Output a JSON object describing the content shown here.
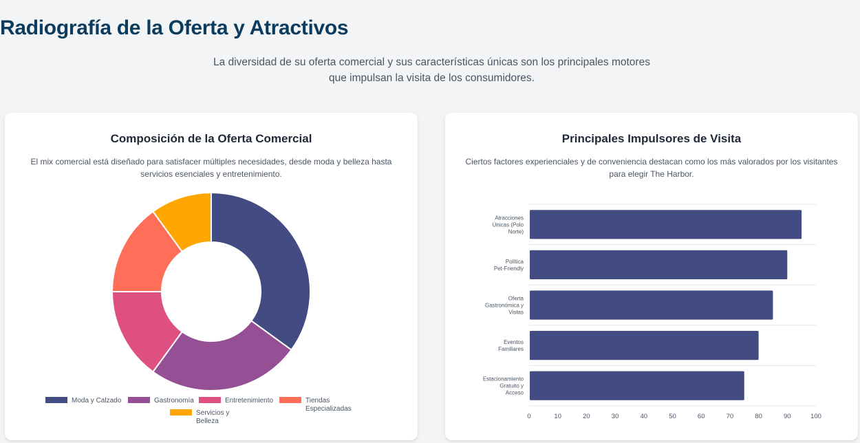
{
  "header": {
    "title": "Radiografía de la Oferta y Atractivos",
    "subtitle": "La diversidad de su oferta comercial y sus características únicas son los principales motores que impulsan la visita de los consumidores."
  },
  "left_card": {
    "title": "Composición de la Oferta Comercial",
    "description": "El mix comercial está diseñado para satisfacer múltiples necesidades, desde moda y belleza hasta servicios esenciales y entretenimiento."
  },
  "right_card": {
    "title": "Principales Impulsores de Visita",
    "description": "Ciertos factores experienciales y de conveniencia destacan como los más valorados por los visitantes para elegir The Harbor."
  },
  "chart_data": [
    {
      "type": "pie",
      "variant": "doughnut",
      "labels": [
        "Moda y Calzado",
        "Gastronomía",
        "Entretenimiento",
        "Tiendas Especializadas",
        "Servicios y Belleza"
      ],
      "values": [
        35,
        25,
        15,
        15,
        10
      ],
      "colors": [
        "#424b82",
        "#954f95",
        "#de5082",
        "#fe6e58",
        "#ffa600"
      ],
      "legend": "bottom"
    },
    {
      "type": "bar",
      "orientation": "horizontal",
      "categories": [
        "Atracciones Únicas (Polo Norte)",
        "Política Pet-Friendly",
        "Oferta Gastronómica y Vistas",
        "Eventos Familiares",
        "Estacionamiento Gratuito y Acceso"
      ],
      "values": [
        95,
        90,
        85,
        80,
        75
      ],
      "color": "#424b82",
      "xlim": [
        0,
        100
      ],
      "xticks": [
        "0",
        "10",
        "20",
        "30",
        "40",
        "50",
        "60",
        "70",
        "80",
        "90",
        "100"
      ],
      "grid": true
    }
  ]
}
